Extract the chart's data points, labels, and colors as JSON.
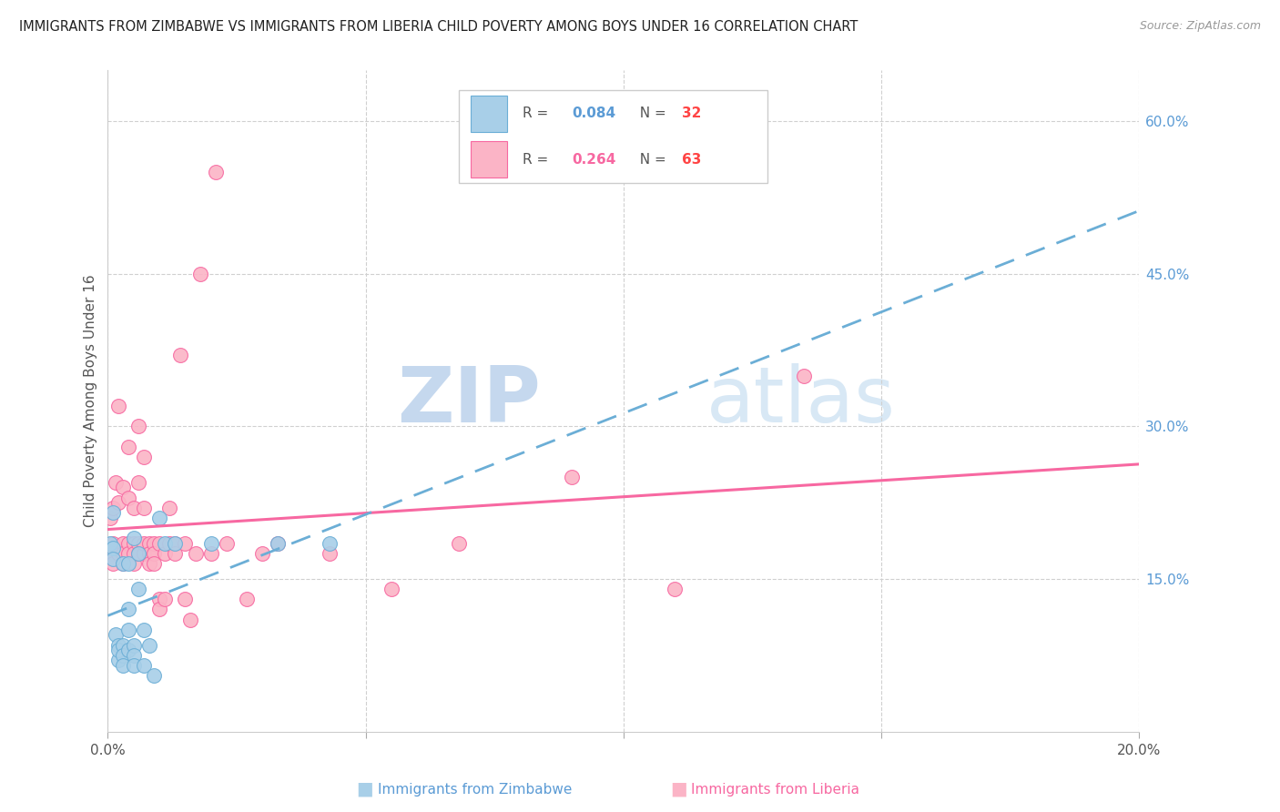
{
  "title": "IMMIGRANTS FROM ZIMBABWE VS IMMIGRANTS FROM LIBERIA CHILD POVERTY AMONG BOYS UNDER 16 CORRELATION CHART",
  "source": "Source: ZipAtlas.com",
  "ylabel": "Child Poverty Among Boys Under 16",
  "xlim": [
    0.0,
    0.2
  ],
  "ylim": [
    0.0,
    0.65
  ],
  "xticks": [
    0.0,
    0.05,
    0.1,
    0.15,
    0.2
  ],
  "xticklabels": [
    "0.0%",
    "",
    "",
    "",
    "20.0%"
  ],
  "yticks_right": [
    0.15,
    0.3,
    0.45,
    0.6
  ],
  "yticklabels_right": [
    "15.0%",
    "30.0%",
    "45.0%",
    "60.0%"
  ],
  "legend_R_zim": "R = 0.084",
  "legend_N_zim": "N = 32",
  "legend_R_lib": "R = 0.264",
  "legend_N_lib": "N = 63",
  "zimbabwe_dot_color": "#a8cfe8",
  "zimbabwe_dot_edge": "#6baed6",
  "liberia_dot_color": "#fbb4c6",
  "liberia_dot_edge": "#f768a1",
  "zimbabwe_trend_color": "#6baed6",
  "liberia_trend_color": "#f768a1",
  "watermark_zip": "ZIP",
  "watermark_atlas": "atlas",
  "grid_color": "#d0d0d0",
  "zimbabwe_x": [
    0.0005,
    0.001,
    0.001,
    0.001,
    0.0015,
    0.002,
    0.002,
    0.002,
    0.003,
    0.003,
    0.003,
    0.003,
    0.004,
    0.004,
    0.004,
    0.004,
    0.005,
    0.005,
    0.005,
    0.005,
    0.006,
    0.006,
    0.007,
    0.007,
    0.008,
    0.009,
    0.01,
    0.011,
    0.013,
    0.02,
    0.033,
    0.043
  ],
  "zimbabwe_y": [
    0.185,
    0.215,
    0.18,
    0.17,
    0.095,
    0.07,
    0.085,
    0.08,
    0.165,
    0.085,
    0.075,
    0.065,
    0.1,
    0.08,
    0.12,
    0.165,
    0.19,
    0.085,
    0.075,
    0.065,
    0.14,
    0.175,
    0.1,
    0.065,
    0.085,
    0.055,
    0.21,
    0.185,
    0.185,
    0.185,
    0.185,
    0.185
  ],
  "liberia_x": [
    0.0005,
    0.0005,
    0.001,
    0.001,
    0.001,
    0.001,
    0.0015,
    0.002,
    0.002,
    0.002,
    0.003,
    0.003,
    0.003,
    0.003,
    0.004,
    0.004,
    0.004,
    0.004,
    0.005,
    0.005,
    0.005,
    0.005,
    0.006,
    0.006,
    0.006,
    0.006,
    0.007,
    0.007,
    0.007,
    0.007,
    0.008,
    0.008,
    0.008,
    0.009,
    0.009,
    0.009,
    0.01,
    0.01,
    0.01,
    0.011,
    0.011,
    0.012,
    0.012,
    0.013,
    0.013,
    0.014,
    0.015,
    0.015,
    0.016,
    0.017,
    0.018,
    0.02,
    0.021,
    0.023,
    0.027,
    0.03,
    0.033,
    0.043,
    0.055,
    0.068,
    0.09,
    0.11,
    0.135
  ],
  "liberia_y": [
    0.21,
    0.175,
    0.22,
    0.185,
    0.175,
    0.165,
    0.245,
    0.32,
    0.175,
    0.225,
    0.24,
    0.185,
    0.175,
    0.165,
    0.28,
    0.23,
    0.185,
    0.175,
    0.22,
    0.185,
    0.175,
    0.165,
    0.3,
    0.245,
    0.185,
    0.175,
    0.175,
    0.185,
    0.22,
    0.27,
    0.185,
    0.175,
    0.165,
    0.185,
    0.175,
    0.165,
    0.13,
    0.12,
    0.185,
    0.175,
    0.13,
    0.185,
    0.22,
    0.185,
    0.175,
    0.37,
    0.13,
    0.185,
    0.11,
    0.175,
    0.45,
    0.175,
    0.55,
    0.185,
    0.13,
    0.175,
    0.185,
    0.175,
    0.14,
    0.185,
    0.25,
    0.14,
    0.35
  ]
}
